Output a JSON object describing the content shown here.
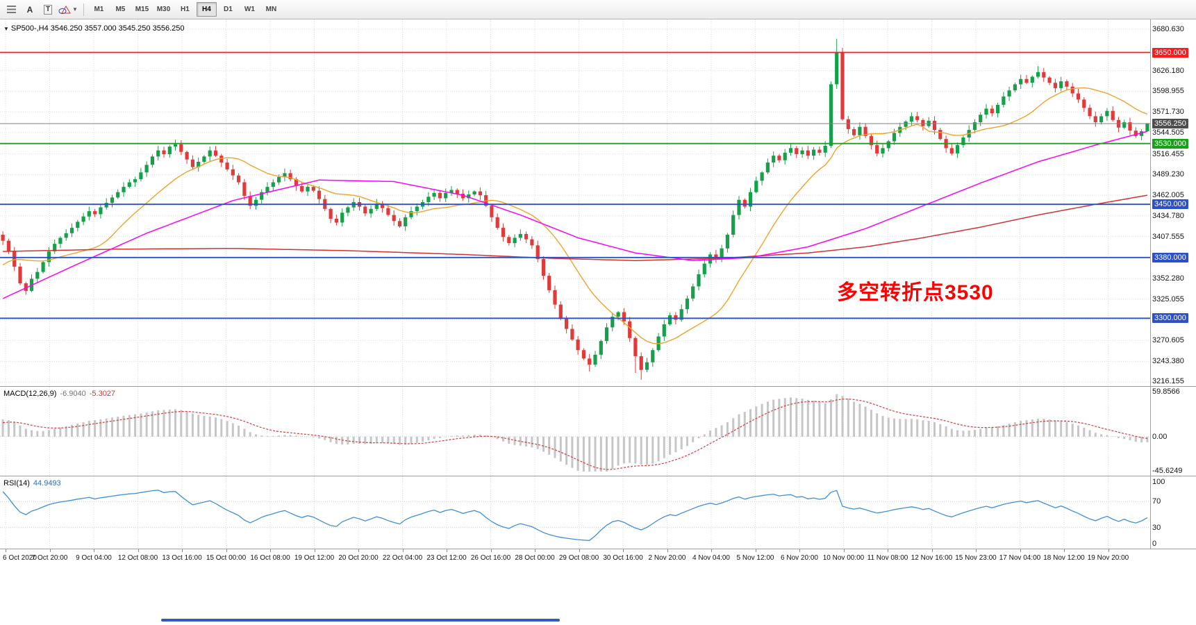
{
  "toolbar": {
    "text_tool": "A",
    "text_box_tool": "T",
    "timeframes": [
      "M1",
      "M5",
      "M15",
      "M30",
      "H1",
      "H4",
      "D1",
      "W1",
      "MN"
    ],
    "active_timeframe": "H4"
  },
  "chart_data": {
    "type": "candlestick",
    "symbol": "SP500-",
    "timeframe": "H4",
    "header_label": "SP500-,H4 3546.250 3557.000 3545.250 3556.250",
    "annotation": "多空转折点3530",
    "annotation_color": "#ff0000",
    "price_range": [
      3216.155,
      3680.63
    ],
    "y_ticks": [
      "3680.630",
      "3626.180",
      "3598.955",
      "3571.730",
      "3544.505",
      "3516.455",
      "3489.230",
      "3462.005",
      "3434.780",
      "3407.555",
      "3352.280",
      "3325.055",
      "3297.830",
      "3270.605",
      "3243.380",
      "3216.155"
    ],
    "x_ticks": [
      "6 Oct 2020",
      "7 Oct 20:00",
      "9 Oct 04:00",
      "12 Oct 08:00",
      "13 Oct 16:00",
      "15 Oct 00:00",
      "16 Oct 08:00",
      "19 Oct 12:00",
      "20 Oct 20:00",
      "22 Oct 04:00",
      "23 Oct 12:00",
      "26 Oct 16:00",
      "28 Oct 00:00",
      "29 Oct 08:00",
      "30 Oct 16:00",
      "2 Nov 20:00",
      "4 Nov 04:00",
      "5 Nov 12:00",
      "6 Nov 20:00",
      "10 Nov 00:00",
      "11 Nov 08:00",
      "12 Nov 16:00",
      "15 Nov 23:00",
      "17 Nov 04:00",
      "18 Nov 12:00",
      "19 Nov 20:00"
    ],
    "hlines": [
      {
        "price": 3650.0,
        "label": "3650.000",
        "color": "#ff1a1a"
      },
      {
        "price": 3530.0,
        "label": "3530.000",
        "color": "#18a018"
      },
      {
        "price": 3450.0,
        "label": "3450.000",
        "color": "#2b50c8"
      },
      {
        "price": 3380.0,
        "label": "3380.000",
        "color": "#2b50c8"
      },
      {
        "price": 3300.0,
        "label": "3300.000",
        "color": "#2b50c8"
      }
    ],
    "bid_price": 3556.25,
    "bid_label": "3556.250",
    "bid_line_color": "#808080",
    "candle_up_color": "#16a04a",
    "candle_down_color": "#e03a3a",
    "first_open": 3410,
    "closes": [
      3402,
      3388,
      3368,
      3346,
      3336,
      3352,
      3361,
      3374,
      3388,
      3398,
      3406,
      3412,
      3419,
      3427,
      3434,
      3441,
      3437,
      3446,
      3452,
      3459,
      3466,
      3473,
      3479,
      3483,
      3492,
      3502,
      3513,
      3521,
      3516,
      3526,
      3529,
      3519,
      3509,
      3499,
      3506,
      3513,
      3521,
      3514,
      3505,
      3496,
      3488,
      3479,
      3461,
      3448,
      3456,
      3466,
      3473,
      3479,
      3486,
      3491,
      3483,
      3474,
      3467,
      3473,
      3468,
      3457,
      3444,
      3431,
      3426,
      3439,
      3446,
      3453,
      3447,
      3438,
      3444,
      3451,
      3445,
      3436,
      3428,
      3421,
      3433,
      3441,
      3447,
      3453,
      3460,
      3465,
      3458,
      3465,
      3469,
      3464,
      3458,
      3463,
      3467,
      3462,
      3448,
      3433,
      3419,
      3407,
      3399,
      3406,
      3411,
      3404,
      3396,
      3378,
      3356,
      3337,
      3318,
      3300,
      3286,
      3272,
      3258,
      3247,
      3239,
      3252,
      3270,
      3288,
      3302,
      3308,
      3296,
      3274,
      3250,
      3232,
      3242,
      3258,
      3276,
      3292,
      3304,
      3298,
      3312,
      3326,
      3342,
      3358,
      3372,
      3384,
      3378,
      3392,
      3410,
      3436,
      3456,
      3447,
      3466,
      3481,
      3492,
      3505,
      3514,
      3508,
      3518,
      3524,
      3516,
      3521,
      3514,
      3522,
      3518,
      3527,
      3608,
      3650,
      3562,
      3549,
      3541,
      3552,
      3540,
      3528,
      3517,
      3524,
      3533,
      3544,
      3552,
      3559,
      3566,
      3561,
      3553,
      3560,
      3548,
      3536,
      3524,
      3517,
      3528,
      3538,
      3548,
      3558,
      3568,
      3576,
      3570,
      3581,
      3592,
      3600,
      3608,
      3615,
      3610,
      3618,
      3624,
      3617,
      3610,
      3603,
      3612,
      3605,
      3596,
      3588,
      3577,
      3566,
      3558,
      3566,
      3573,
      3561,
      3551,
      3558,
      3547,
      3540,
      3546.25,
      3556.25
    ],
    "prepend_closes": [
      3310,
      3318,
      3328,
      3340,
      3352,
      3360,
      3368,
      3376,
      3370,
      3364,
      3372,
      3380,
      3388,
      3396,
      3402,
      3408
    ],
    "wick_overrides": [
      {
        "i": 4,
        "low": 3331
      },
      {
        "i": 30,
        "high": 3535
      },
      {
        "i": 102,
        "low": 3230
      },
      {
        "i": 110,
        "low": 3228
      },
      {
        "i": 111,
        "low": 3219
      },
      {
        "i": 145,
        "high": 3668
      },
      {
        "i": 180,
        "high": 3632
      },
      {
        "i": 199,
        "high": 3557,
        "low": 3545.25
      }
    ],
    "moving_averages": {
      "fast": {
        "type": "sma",
        "period": 16,
        "color": "#efa32a"
      },
      "mid": {
        "color": "#ff00ff",
        "path": [
          [
            0,
            3326
          ],
          [
            12,
            3368
          ],
          [
            25,
            3412
          ],
          [
            40,
            3455
          ],
          [
            55,
            3482
          ],
          [
            68,
            3480
          ],
          [
            80,
            3462
          ],
          [
            90,
            3436
          ],
          [
            100,
            3406
          ],
          [
            110,
            3386
          ],
          [
            120,
            3376
          ],
          [
            130,
            3380
          ],
          [
            140,
            3394
          ],
          [
            150,
            3418
          ],
          [
            160,
            3448
          ],
          [
            170,
            3478
          ],
          [
            180,
            3506
          ],
          [
            190,
            3528
          ],
          [
            199,
            3546
          ]
        ]
      },
      "slow": {
        "color": "#d43131",
        "path": [
          [
            0,
            3388
          ],
          [
            20,
            3391
          ],
          [
            40,
            3392
          ],
          [
            60,
            3389
          ],
          [
            80,
            3384
          ],
          [
            95,
            3379
          ],
          [
            110,
            3376
          ],
          [
            125,
            3379
          ],
          [
            140,
            3386
          ],
          [
            150,
            3394
          ],
          [
            160,
            3406
          ],
          [
            170,
            3420
          ],
          [
            180,
            3436
          ],
          [
            190,
            3450
          ],
          [
            199,
            3462
          ]
        ]
      }
    },
    "macd": {
      "title": "MACD(12,26,9)",
      "value_main": "-6.9040",
      "value_signal": "-5.3027",
      "fast": 12,
      "slow": 26,
      "signal": 9,
      "range": [
        -45.6249,
        59.8566
      ],
      "axis_labels": [
        "59.8566",
        "0.00",
        "-45.6249"
      ],
      "hist_color": "#c6c6c6",
      "signal_color": "#d23c3c"
    },
    "rsi": {
      "title": "RSI(14)",
      "value": "44.9493",
      "period": 14,
      "levels": [
        70,
        30
      ],
      "axis_labels": [
        "100",
        "70",
        "30",
        "0"
      ],
      "color": "#3f8fd6"
    }
  }
}
